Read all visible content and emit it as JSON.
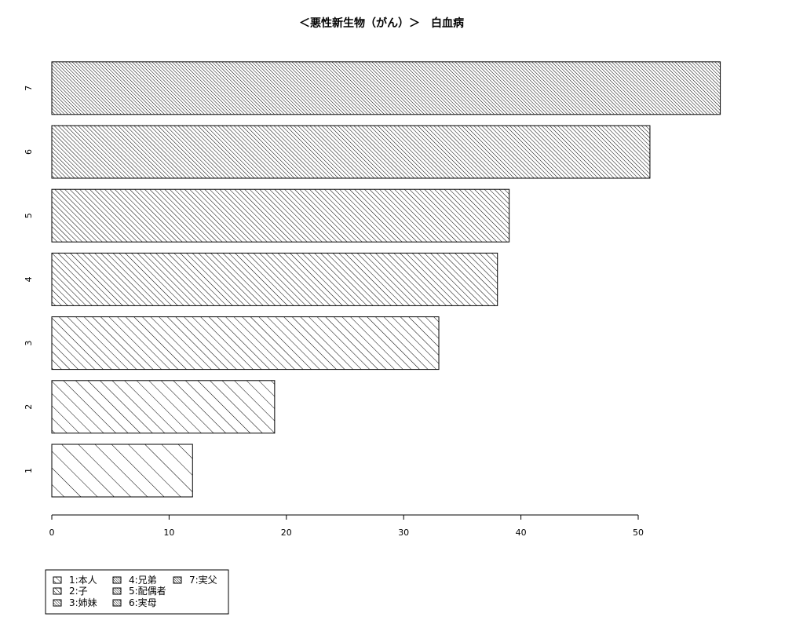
{
  "chart_data": {
    "type": "bar",
    "orientation": "horizontal",
    "title": "＜悪性新生物（がん）＞　白血病",
    "xlabel": "",
    "ylabel": "",
    "categories": [
      "1",
      "2",
      "3",
      "4",
      "5",
      "6",
      "7"
    ],
    "values": [
      12,
      19,
      33,
      38,
      39,
      51,
      57
    ],
    "xlim": [
      0,
      57
    ],
    "x_ticks": [
      0,
      10,
      20,
      30,
      40,
      50
    ],
    "grid": false,
    "fill": "hatched",
    "legend_position": "bottom-left",
    "legend": [
      {
        "label": "1:本人",
        "category": "1"
      },
      {
        "label": "2:子",
        "category": "2"
      },
      {
        "label": "3:姉妹",
        "category": "3"
      },
      {
        "label": "4:兄弟",
        "category": "4"
      },
      {
        "label": "5:配偶者",
        "category": "5"
      },
      {
        "label": "6:実母",
        "category": "6"
      },
      {
        "label": "7:実父",
        "category": "7"
      }
    ]
  }
}
